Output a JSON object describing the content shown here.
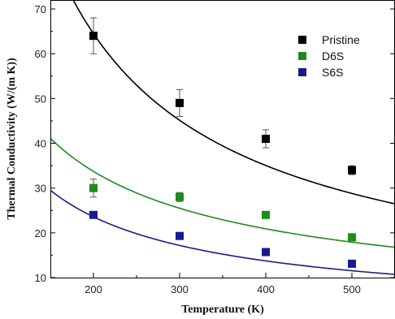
{
  "chart_data": {
    "type": "scatter",
    "xlabel": "Temperature (K)",
    "ylabel": "Thermal Conductivity (W/(m K))",
    "xlim": [
      150,
      550
    ],
    "ylim": [
      10,
      72
    ],
    "x_ticks": [
      200,
      300,
      400,
      500
    ],
    "y_ticks": [
      10,
      20,
      30,
      40,
      50,
      60,
      70
    ],
    "x_tick_labels": [
      "200",
      "300",
      "400",
      "500"
    ],
    "y_tick_labels": [
      "10",
      "20",
      "30",
      "40",
      "50",
      "60",
      "70"
    ],
    "grid": false,
    "legend_position": "top-right",
    "series": [
      {
        "name": "Pristine",
        "color": "#000000",
        "marker": "square",
        "x": [
          200,
          300,
          400,
          500
        ],
        "y": [
          64,
          49,
          41,
          34
        ],
        "error": [
          4,
          3,
          2,
          1
        ],
        "fit": {
          "type": "power",
          "a": 6830,
          "b": -0.88
        }
      },
      {
        "name": "D6S",
        "color": "#1e8c1e",
        "marker": "square",
        "x": [
          200,
          300,
          400,
          500
        ],
        "y": [
          30,
          28,
          24,
          19
        ],
        "error": [
          2,
          1,
          0.7,
          0.5
        ],
        "fit": {
          "type": "power",
          "a": 1305,
          "b": -0.69
        }
      },
      {
        "name": "S6S",
        "color": "#1a1a8c",
        "marker": "square",
        "x": [
          200,
          300,
          400,
          500
        ],
        "y": [
          24,
          19.3,
          15.7,
          13.1
        ],
        "error": [
          0.5,
          0.5,
          0.4,
          0.4
        ],
        "fit": {
          "type": "power",
          "a": 1470,
          "b": -0.78
        }
      }
    ]
  }
}
